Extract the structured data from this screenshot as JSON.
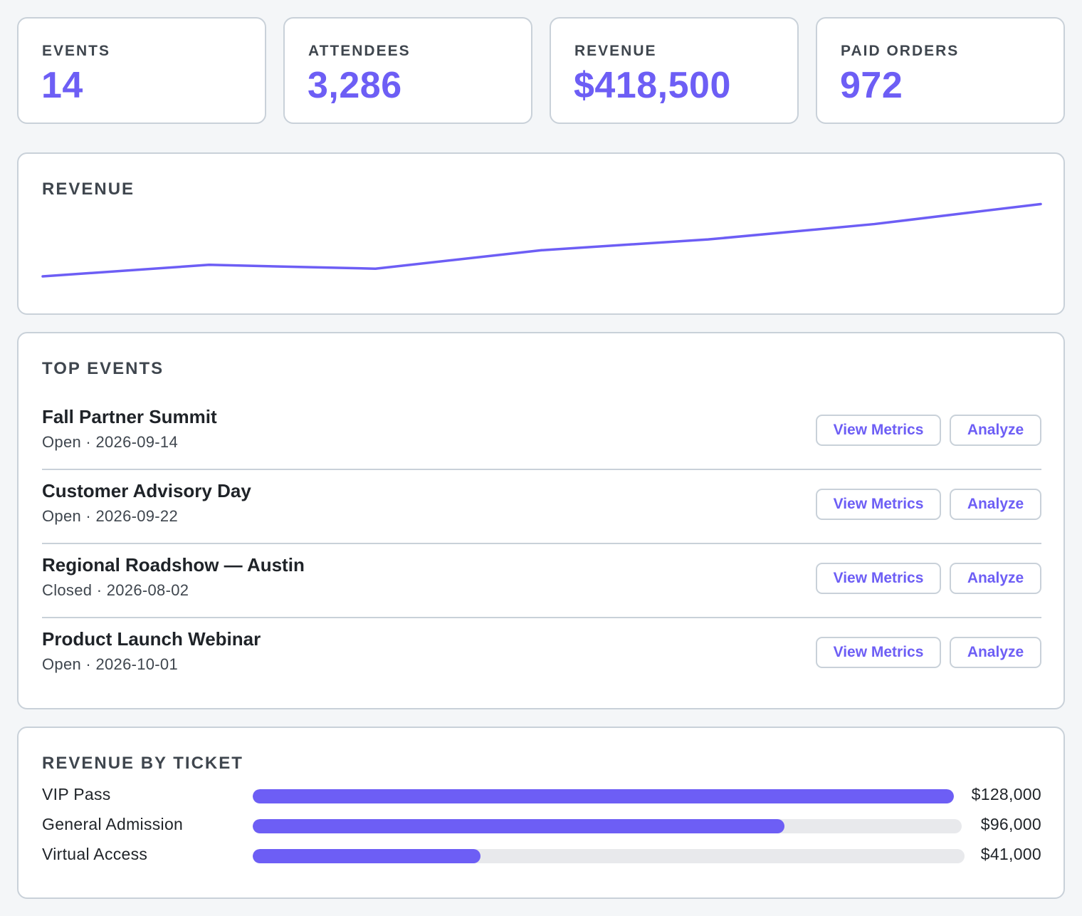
{
  "stats": [
    {
      "label": "EVENTS",
      "value": "14"
    },
    {
      "label": "ATTENDEES",
      "value": "3,286"
    },
    {
      "label": "REVENUE",
      "value": "$418,500"
    },
    {
      "label": "PAID ORDERS",
      "value": "972"
    }
  ],
  "revenue_chart": {
    "title": "REVENUE",
    "line_color": "#6d5ef5"
  },
  "chart_data": {
    "type": "line",
    "title": "REVENUE",
    "series": [
      {
        "values": [
          0,
          15,
          10,
          34,
          48,
          68,
          94
        ]
      }
    ],
    "ylim": [
      0,
      100
    ],
    "grid": false,
    "legend": "none"
  },
  "top_events": {
    "title": "TOP EVENTS",
    "items": [
      {
        "name": "Fall Partner Summit",
        "meta": "Open · 2026-09-14",
        "view_label": "View Metrics",
        "analyze_label": "Analyze"
      },
      {
        "name": "Customer Advisory Day",
        "meta": "Open · 2026-09-22",
        "view_label": "View Metrics",
        "analyze_label": "Analyze"
      },
      {
        "name": "Regional Roadshow — Austin",
        "meta": "Closed · 2026-08-02",
        "view_label": "View Metrics",
        "analyze_label": "Analyze"
      },
      {
        "name": "Product Launch Webinar",
        "meta": "Open · 2026-10-01",
        "view_label": "View Metrics",
        "analyze_label": "Analyze"
      }
    ]
  },
  "revenue_by_ticket": {
    "title": "REVENUE BY TICKET",
    "items": [
      {
        "label": "VIP Pass",
        "amount": "$128,000",
        "value": 128000,
        "fraction": 1.0
      },
      {
        "label": "General Admission",
        "amount": "$96,000",
        "value": 96000,
        "fraction": 0.75
      },
      {
        "label": "Virtual Access",
        "amount": "$41,000",
        "value": 41000,
        "fraction": 0.32
      }
    ]
  },
  "colors": {
    "accent": "#6d5ef5",
    "border": "#c9d1d9",
    "track": "#e8e9ec",
    "background": "#f4f6f8"
  }
}
